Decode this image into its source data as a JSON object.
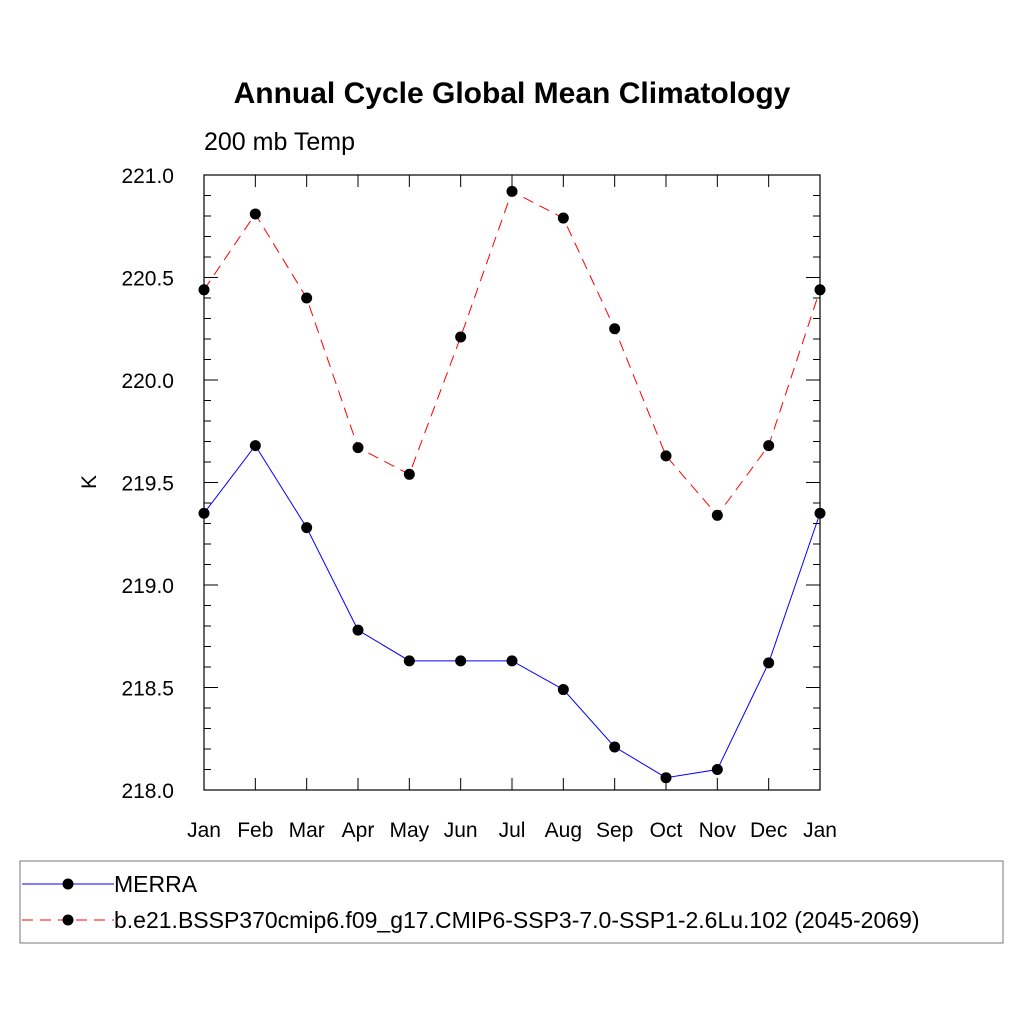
{
  "chart_data": {
    "type": "line",
    "title": "Annual Cycle Global Mean Climatology",
    "subtitle": "200 mb Temp",
    "xlabel": "",
    "ylabel": "K",
    "categories": [
      "Jan",
      "Feb",
      "Mar",
      "Apr",
      "May",
      "Jun",
      "Jul",
      "Aug",
      "Sep",
      "Oct",
      "Nov",
      "Dec",
      "Jan"
    ],
    "ylim": [
      218.0,
      221.0
    ],
    "yticks": [
      "218.0",
      "218.5",
      "219.0",
      "219.5",
      "220.0",
      "220.5",
      "221.0"
    ],
    "grid": false,
    "legend_position": "bottom",
    "series": [
      {
        "name": "MERRA",
        "color": "#0000ff",
        "dash": "solid",
        "values": [
          219.35,
          219.68,
          219.28,
          218.78,
          218.63,
          218.63,
          218.63,
          218.49,
          218.21,
          218.06,
          218.1,
          218.62,
          219.35
        ]
      },
      {
        "name": "b.e21.BSSP370cmip6.f09_g17.CMIP6-SSP3-7.0-SSP1-2.6Lu.102 (2045-2069)",
        "color": "#ff0000",
        "dash": "dashed",
        "values": [
          220.44,
          220.81,
          220.4,
          219.67,
          219.54,
          220.21,
          220.92,
          220.79,
          220.25,
          219.63,
          219.34,
          219.68,
          220.44
        ]
      }
    ]
  }
}
